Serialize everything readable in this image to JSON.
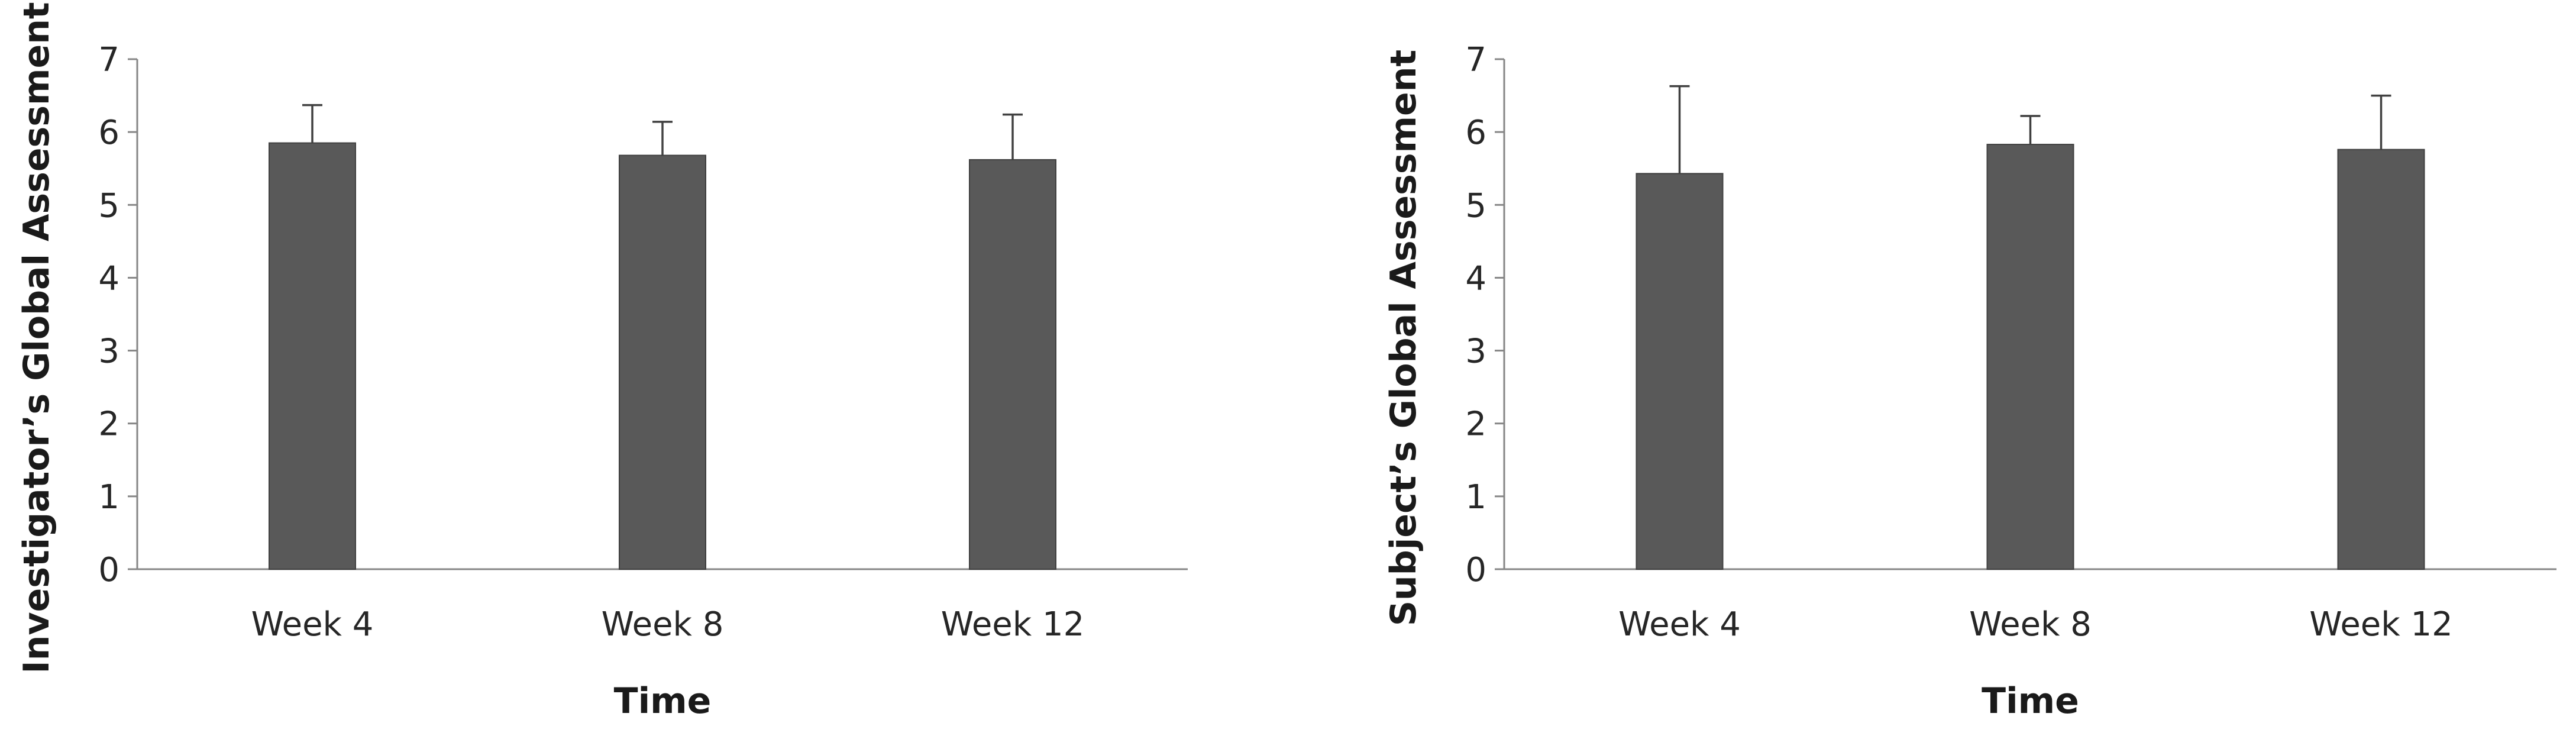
{
  "colors": {
    "bar": "#595959",
    "bar_edge": "#404040",
    "axis": "#868686",
    "error_bar": "#404040",
    "text": "#262626"
  },
  "chart_data": [
    {
      "type": "bar",
      "categories": [
        "Week 4",
        "Week 8",
        "Week 12"
      ],
      "values": [
        5.85,
        5.68,
        5.62
      ],
      "error_upper": [
        0.52,
        0.46,
        0.62
      ],
      "xlabel": "Time",
      "ylabel": "Investigator’s Global Assessment",
      "ylim": [
        0,
        7
      ],
      "yticks": [
        0,
        1,
        2,
        3,
        4,
        5,
        6,
        7
      ],
      "grid": false,
      "legend": "none"
    },
    {
      "type": "bar",
      "categories": [
        "Week 4",
        "Week 8",
        "Week 12"
      ],
      "values": [
        5.43,
        5.83,
        5.76
      ],
      "error_upper": [
        1.2,
        0.39,
        0.74
      ],
      "xlabel": "Time",
      "ylabel": "Subject’s Global Assessment",
      "ylim": [
        0,
        7
      ],
      "yticks": [
        0,
        1,
        2,
        3,
        4,
        5,
        6,
        7
      ],
      "grid": false,
      "legend": "none"
    }
  ]
}
